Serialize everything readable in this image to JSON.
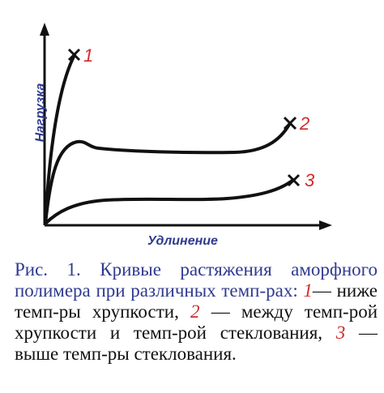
{
  "diagram": {
    "ylabel": "Нагрузка",
    "xlabel": "Удлинение",
    "curves": [
      {
        "id": "1"
      },
      {
        "id": "2"
      },
      {
        "id": "3"
      }
    ]
  },
  "caption": {
    "prefix": "Рис. 1. Кривые растяжения аморфного полимера при различных темп-рах: ",
    "n1": "1",
    "t1": "— ниже темп-ры хрупкости, ",
    "n2": "2",
    "t2": " — между темп-рой хрупкости и темп-рой стеклования, ",
    "n3": "3",
    "t3": " — выше темп-ры стеклования."
  }
}
